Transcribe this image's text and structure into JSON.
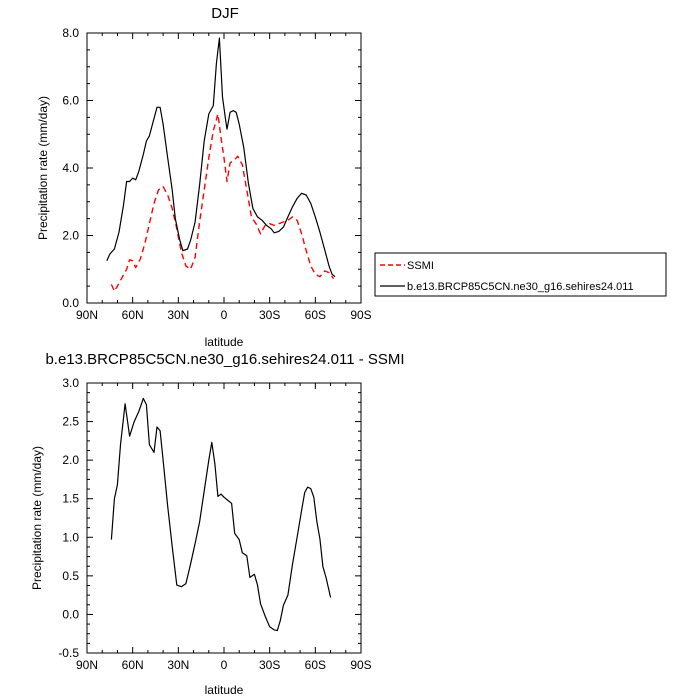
{
  "chart_data": [
    {
      "type": "line",
      "title": "DJF",
      "xlabel": "latitude",
      "ylabel": "Precipitation rate (mm/day)",
      "xlim": [
        90,
        -90
      ],
      "ylim": [
        0,
        8
      ],
      "xticks": [
        {
          "v": 90,
          "label": "90N"
        },
        {
          "v": 60,
          "label": "60N"
        },
        {
          "v": 30,
          "label": "30N"
        },
        {
          "v": 0,
          "label": "0"
        },
        {
          "v": -30,
          "label": "30S"
        },
        {
          "v": -60,
          "label": "60S"
        },
        {
          "v": -90,
          "label": "90S"
        }
      ],
      "yticks": [
        {
          "v": 0,
          "label": "0.0"
        },
        {
          "v": 2,
          "label": "2.0"
        },
        {
          "v": 4,
          "label": "4.0"
        },
        {
          "v": 6,
          "label": "6.0"
        },
        {
          "v": 8,
          "label": "8.0"
        }
      ],
      "legend_position": "right",
      "series": [
        {
          "name": "SSMI",
          "color": "#ff0000",
          "dash": "dashed",
          "points": [
            [
              74,
              0.55
            ],
            [
              72,
              0.35
            ],
            [
              70,
              0.5
            ],
            [
              67,
              0.75
            ],
            [
              64,
              1.0
            ],
            [
              62,
              1.28
            ],
            [
              60,
              1.25
            ],
            [
              58,
              1.05
            ],
            [
              55,
              1.3
            ],
            [
              52,
              1.75
            ],
            [
              49,
              2.35
            ],
            [
              46,
              2.95
            ],
            [
              43,
              3.35
            ],
            [
              40,
              3.45
            ],
            [
              37,
              3.2
            ],
            [
              34,
              2.8
            ],
            [
              31,
              2.2
            ],
            [
              28,
              1.5
            ],
            [
              25,
              1.1
            ],
            [
              22,
              1.0
            ],
            [
              19,
              1.35
            ],
            [
              16,
              2.4
            ],
            [
              13,
              3.35
            ],
            [
              10,
              4.3
            ],
            [
              7,
              5.1
            ],
            [
              4,
              5.6
            ],
            [
              2,
              4.9
            ],
            [
              0,
              4.3
            ],
            [
              -2,
              3.6
            ],
            [
              -4,
              4.15
            ],
            [
              -7,
              4.25
            ],
            [
              -9,
              4.35
            ],
            [
              -12,
              4.1
            ],
            [
              -15,
              3.35
            ],
            [
              -18,
              2.55
            ],
            [
              -21,
              2.35
            ],
            [
              -24,
              2.05
            ],
            [
              -27,
              2.3
            ],
            [
              -30,
              2.35
            ],
            [
              -33,
              2.3
            ],
            [
              -36,
              2.35
            ],
            [
              -39,
              2.4
            ],
            [
              -42,
              2.45
            ],
            [
              -45,
              2.55
            ],
            [
              -48,
              2.45
            ],
            [
              -51,
              2.05
            ],
            [
              -54,
              1.55
            ],
            [
              -57,
              1.1
            ],
            [
              -60,
              0.85
            ],
            [
              -63,
              0.78
            ],
            [
              -66,
              0.95
            ],
            [
              -69,
              0.9
            ],
            [
              -72,
              0.72
            ]
          ]
        },
        {
          "name": "b.e13.BRCP85C5CN.ne30_g16.sehires24.011",
          "color": "#000000",
          "dash": "solid",
          "points": [
            [
              77,
              1.25
            ],
            [
              75,
              1.45
            ],
            [
              72,
              1.6
            ],
            [
              69,
              2.1
            ],
            [
              66,
              2.9
            ],
            [
              64,
              3.6
            ],
            [
              62,
              3.6
            ],
            [
              60,
              3.7
            ],
            [
              58,
              3.65
            ],
            [
              56,
              3.9
            ],
            [
              53,
              4.4
            ],
            [
              51,
              4.8
            ],
            [
              49,
              4.95
            ],
            [
              47,
              5.3
            ],
            [
              44,
              5.8
            ],
            [
              42,
              5.8
            ],
            [
              40,
              5.3
            ],
            [
              37,
              4.3
            ],
            [
              34,
              3.35
            ],
            [
              32,
              2.5
            ],
            [
              29,
              1.85
            ],
            [
              27,
              1.55
            ],
            [
              24,
              1.6
            ],
            [
              22,
              1.85
            ],
            [
              19,
              2.4
            ],
            [
              16,
              3.5
            ],
            [
              13,
              4.8
            ],
            [
              10,
              5.6
            ],
            [
              7,
              5.85
            ],
            [
              5,
              7.1
            ],
            [
              3,
              7.85
            ],
            [
              1,
              6.1
            ],
            [
              -1,
              5.45
            ],
            [
              -2,
              5.15
            ],
            [
              -4,
              5.65
            ],
            [
              -6,
              5.7
            ],
            [
              -8,
              5.65
            ],
            [
              -10,
              5.3
            ],
            [
              -13,
              4.6
            ],
            [
              -16,
              3.55
            ],
            [
              -19,
              2.8
            ],
            [
              -22,
              2.55
            ],
            [
              -25,
              2.45
            ],
            [
              -28,
              2.3
            ],
            [
              -31,
              2.2
            ],
            [
              -33,
              2.08
            ],
            [
              -36,
              2.12
            ],
            [
              -39,
              2.25
            ],
            [
              -42,
              2.55
            ],
            [
              -45,
              2.85
            ],
            [
              -48,
              3.1
            ],
            [
              -51,
              3.25
            ],
            [
              -54,
              3.2
            ],
            [
              -57,
              2.95
            ],
            [
              -60,
              2.55
            ],
            [
              -63,
              2.1
            ],
            [
              -66,
              1.6
            ],
            [
              -69,
              1.1
            ],
            [
              -71,
              0.85
            ],
            [
              -73,
              0.78
            ]
          ]
        }
      ]
    },
    {
      "type": "line",
      "title": "b.e13.BRCP85C5CN.ne30_g16.sehires24.011 - SSMI",
      "xlabel": "latitude",
      "ylabel": "Precipitation rate (mm/day)",
      "xlim": [
        90,
        -90
      ],
      "ylim": [
        -0.5,
        3.0
      ],
      "xticks": [
        {
          "v": 90,
          "label": "90N"
        },
        {
          "v": 60,
          "label": "60N"
        },
        {
          "v": 30,
          "label": "30N"
        },
        {
          "v": 0,
          "label": "0"
        },
        {
          "v": -30,
          "label": "30S"
        },
        {
          "v": -60,
          "label": "60S"
        },
        {
          "v": -90,
          "label": "90S"
        }
      ],
      "yticks": [
        {
          "v": -0.5,
          "label": "-0.5"
        },
        {
          "v": 0.0,
          "label": "0.0"
        },
        {
          "v": 0.5,
          "label": "0.5"
        },
        {
          "v": 1.0,
          "label": "1.0"
        },
        {
          "v": 1.5,
          "label": "1.5"
        },
        {
          "v": 2.0,
          "label": "2.0"
        },
        {
          "v": 2.5,
          "label": "2.5"
        },
        {
          "v": 3.0,
          "label": "3.0"
        }
      ],
      "series": [
        {
          "color": "#000000",
          "dash": "solid",
          "points": [
            [
              74,
              0.97
            ],
            [
              72,
              1.5
            ],
            [
              70,
              1.68
            ],
            [
              68,
              2.2
            ],
            [
              65,
              2.73
            ],
            [
              62,
              2.31
            ],
            [
              59,
              2.5
            ],
            [
              56,
              2.63
            ],
            [
              53,
              2.8
            ],
            [
              51,
              2.72
            ],
            [
              49,
              2.2
            ],
            [
              46,
              2.1
            ],
            [
              44,
              2.43
            ],
            [
              42,
              2.38
            ],
            [
              40,
              2.0
            ],
            [
              37,
              1.4
            ],
            [
              34,
              0.88
            ],
            [
              31,
              0.38
            ],
            [
              28,
              0.36
            ],
            [
              25,
              0.4
            ],
            [
              22,
              0.65
            ],
            [
              19,
              0.92
            ],
            [
              16,
              1.2
            ],
            [
              13,
              1.6
            ],
            [
              10,
              2.0
            ],
            [
              8,
              2.23
            ],
            [
              6,
              1.95
            ],
            [
              4,
              1.53
            ],
            [
              2,
              1.56
            ],
            [
              0,
              1.52
            ],
            [
              -3,
              1.47
            ],
            [
              -5,
              1.44
            ],
            [
              -7,
              1.05
            ],
            [
              -10,
              0.97
            ],
            [
              -12,
              0.8
            ],
            [
              -15,
              0.76
            ],
            [
              -17,
              0.48
            ],
            [
              -20,
              0.52
            ],
            [
              -22,
              0.38
            ],
            [
              -24,
              0.14
            ],
            [
              -27,
              -0.02
            ],
            [
              -30,
              -0.16
            ],
            [
              -33,
              -0.2
            ],
            [
              -35,
              -0.21
            ],
            [
              -37,
              -0.08
            ],
            [
              -39,
              0.12
            ],
            [
              -42,
              0.25
            ],
            [
              -45,
              0.65
            ],
            [
              -48,
              1.0
            ],
            [
              -51,
              1.35
            ],
            [
              -53,
              1.58
            ],
            [
              -55,
              1.65
            ],
            [
              -57,
              1.63
            ],
            [
              -59,
              1.52
            ],
            [
              -61,
              1.2
            ],
            [
              -63,
              0.98
            ],
            [
              -65,
              0.62
            ],
            [
              -67,
              0.48
            ],
            [
              -70,
              0.22
            ]
          ]
        }
      ]
    }
  ]
}
